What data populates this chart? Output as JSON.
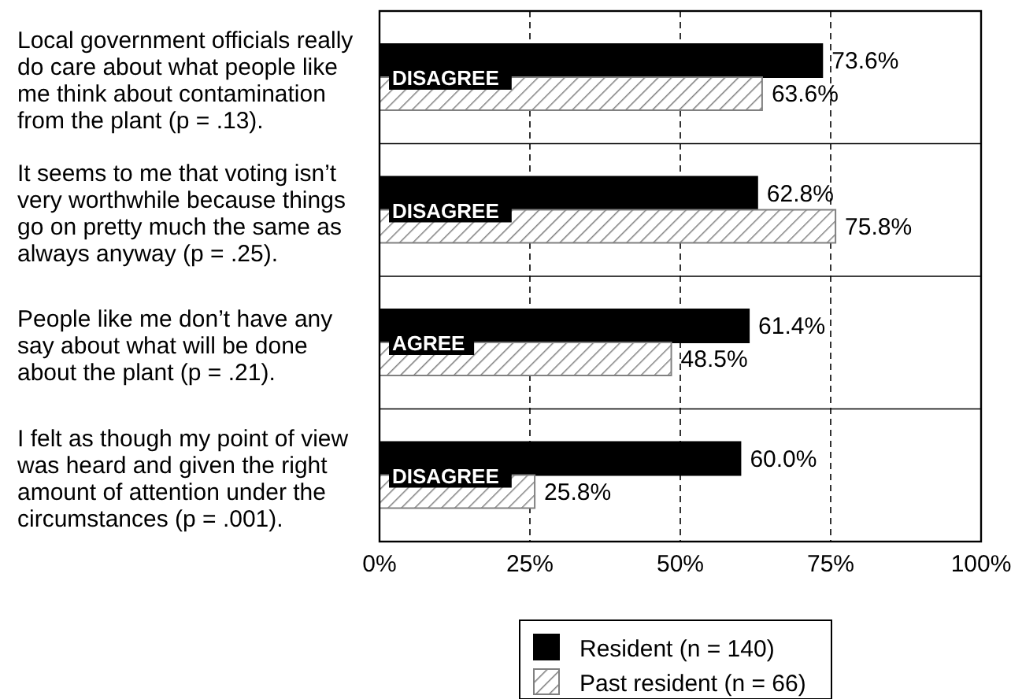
{
  "chart_data": {
    "type": "bar",
    "orientation": "horizontal",
    "categories": [
      "Local government officials really do care about what people like me think about contamination from the plant (p = .13).",
      "It seems to me that voting isn’t very worthwhile because things go on pretty much the same as always anyway (p = .25).",
      "People like me don’t have any say about what will be done about the plant (p = .21).",
      "I felt as though my point of view was heard and given the right amount of attention under the circumstances (p = .001)."
    ],
    "series": [
      {
        "name": "Resident (n = 140)",
        "color": "#000000",
        "values": [
          73.6,
          62.8,
          61.4,
          60.0
        ],
        "value_labels": [
          "73.6%",
          "62.8%",
          "61.4%",
          "60.0%"
        ]
      },
      {
        "name": "Past resident (n = 66)",
        "color": "#808080",
        "values": [
          63.6,
          75.8,
          48.5,
          25.8
        ],
        "value_labels": [
          "63.6%",
          "75.8%",
          "48.5%",
          "25.8%"
        ]
      }
    ],
    "xlim": [
      0,
      100
    ],
    "xticks": [
      {
        "value": 0,
        "label": "0%"
      },
      {
        "value": 25,
        "label": "25%"
      },
      {
        "value": 50,
        "label": "50%"
      },
      {
        "value": 75,
        "label": "75%"
      },
      {
        "value": 100,
        "label": "100%"
      }
    ],
    "grid": "x",
    "legend": "bottom",
    "annotations": [
      "DISAGREE",
      "DISAGREE",
      "AGREE",
      "DISAGREE"
    ]
  }
}
